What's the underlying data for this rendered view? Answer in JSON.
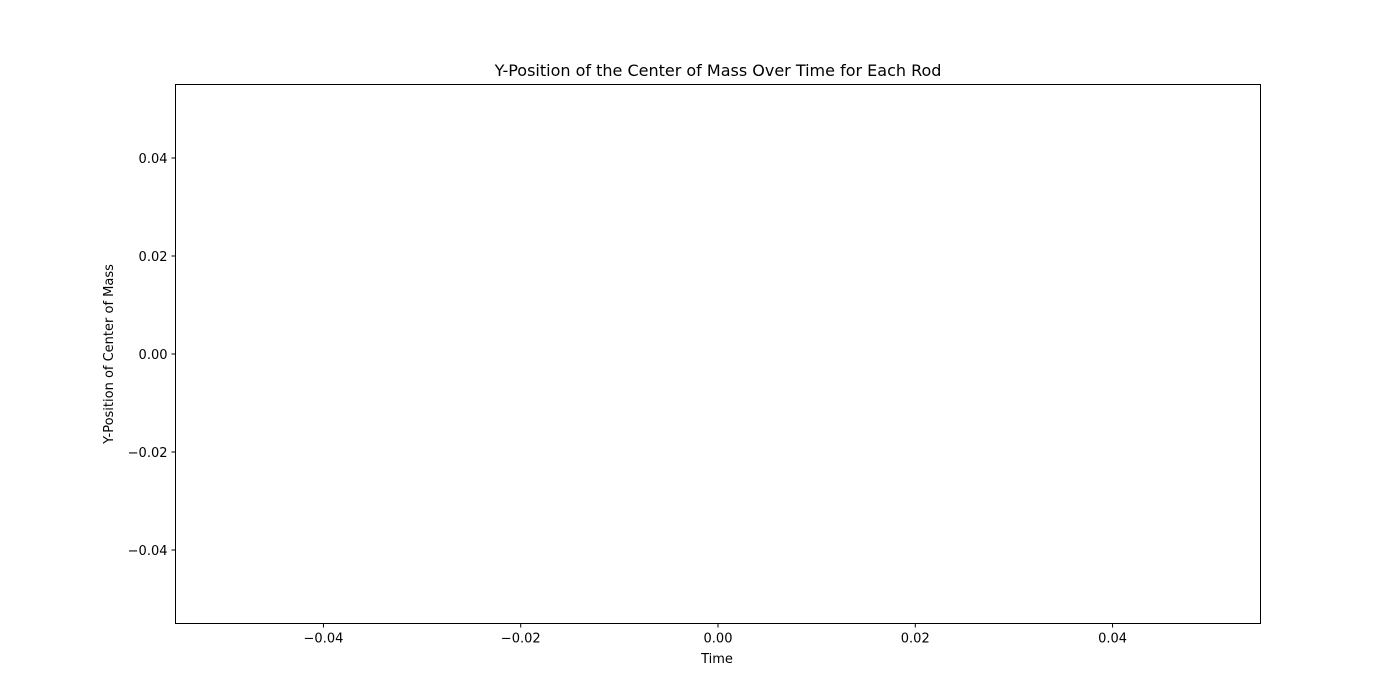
{
  "chart_data": {
    "type": "line",
    "title": "Y-Position of the Center of Mass Over Time for Each Rod",
    "xlabel": "Time",
    "ylabel": "Y-Position of Center of Mass",
    "xlim": [
      -0.055,
      0.055
    ],
    "ylim": [
      -0.055,
      0.055
    ],
    "x_ticks": [
      -0.04,
      -0.02,
      0.0,
      0.02,
      0.04
    ],
    "x_tick_labels": [
      "−0.04",
      "−0.02",
      "0.00",
      "0.02",
      "0.04"
    ],
    "y_ticks": [
      0.04,
      0.02,
      0.0,
      -0.02,
      -0.04
    ],
    "y_tick_labels": [
      "0.04",
      "0.02",
      "0.00",
      "−0.02",
      "−0.04"
    ],
    "grid": false,
    "series": []
  }
}
